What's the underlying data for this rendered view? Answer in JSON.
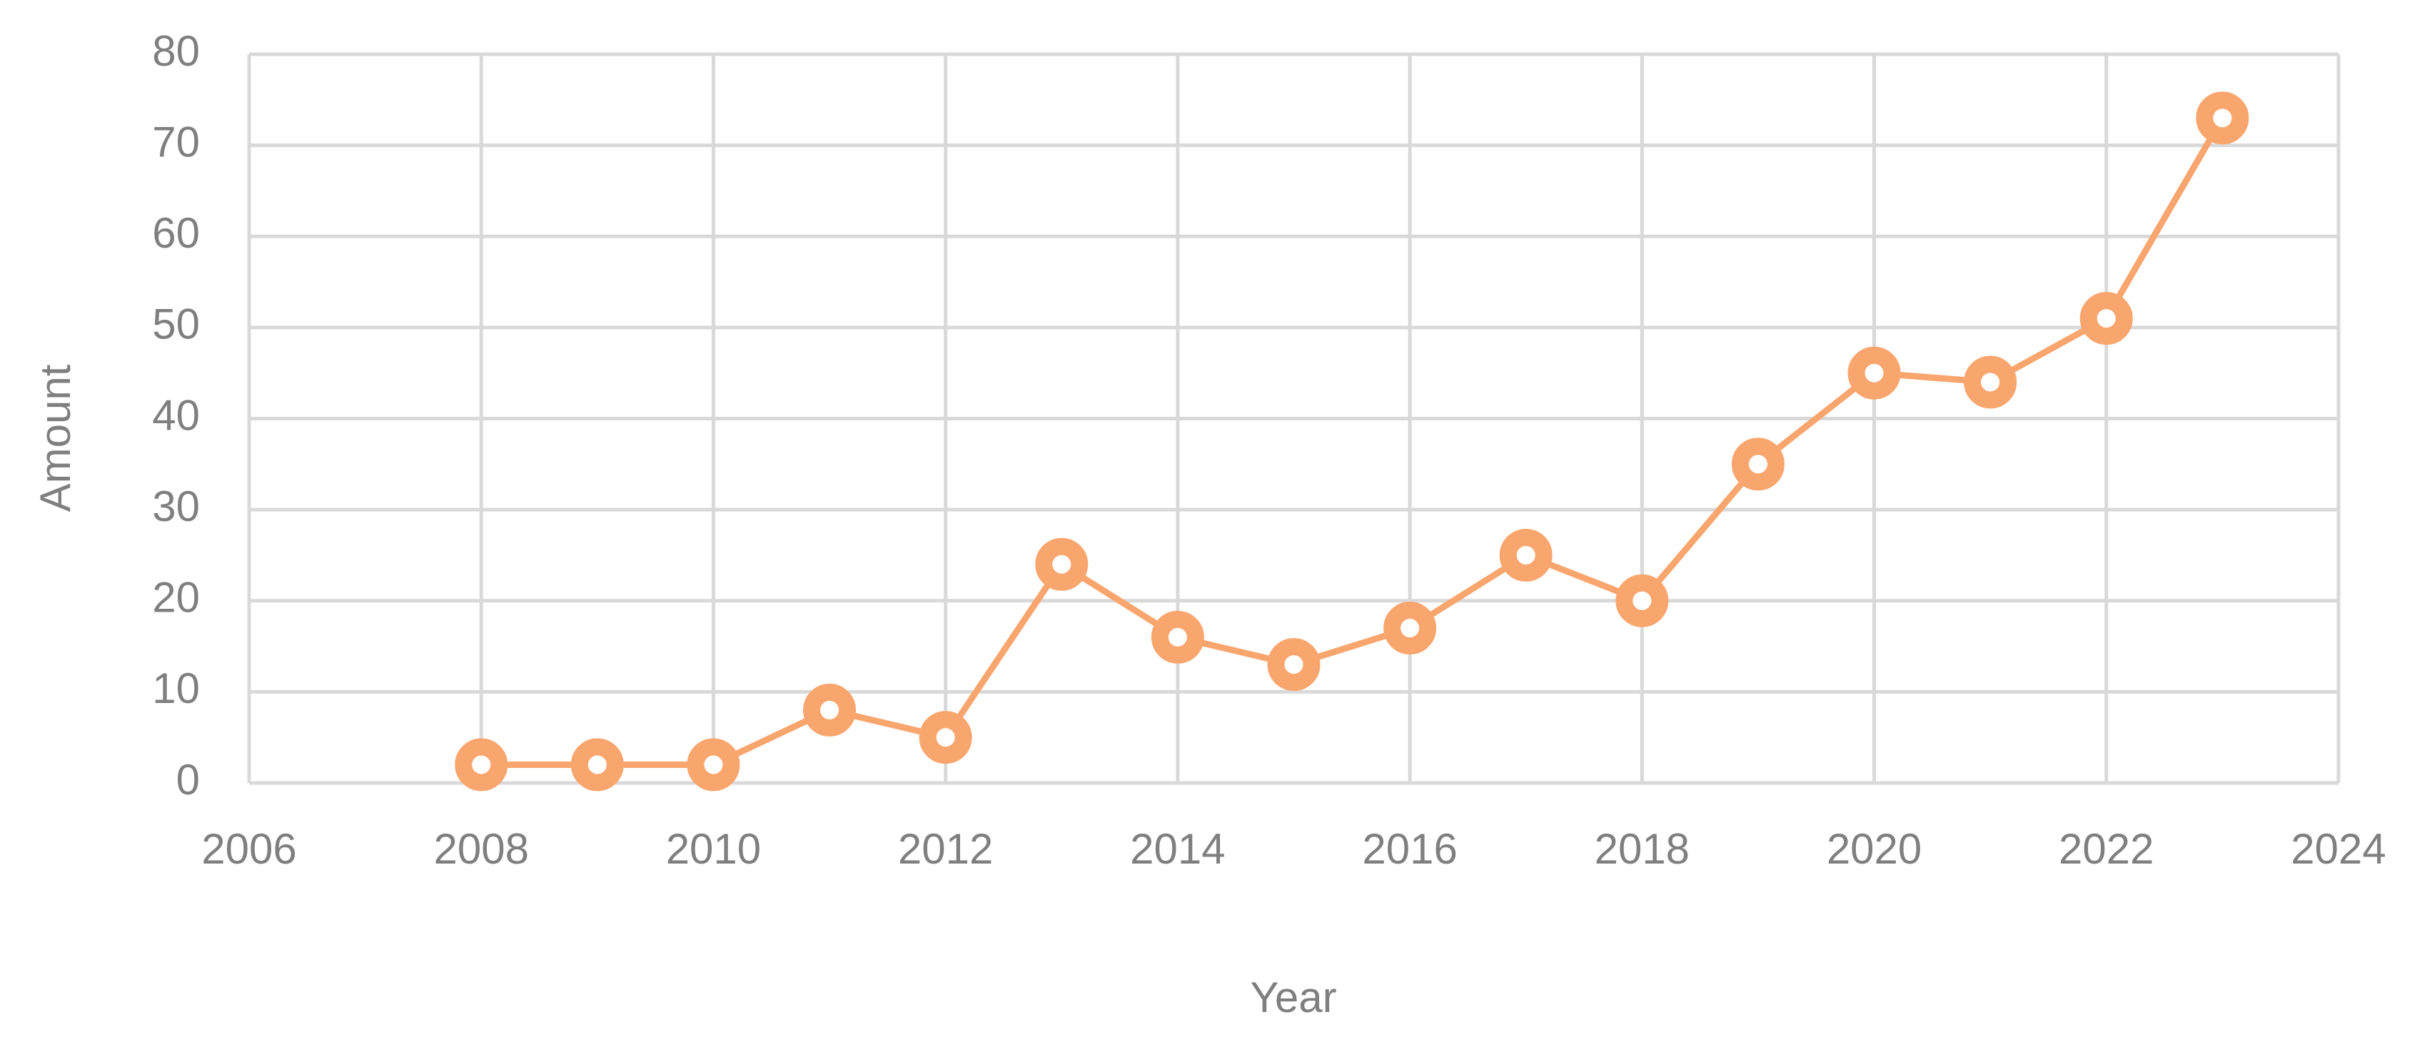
{
  "chart_data": {
    "type": "line",
    "x_label": "Year",
    "y_label": "Amount",
    "x": [
      2008,
      2009,
      2010,
      2011,
      2012,
      2013,
      2014,
      2015,
      2016,
      2017,
      2018,
      2019,
      2020,
      2021,
      2022,
      2023
    ],
    "series": [
      {
        "name": "Amount",
        "color": "#f9a66e",
        "values": [
          2,
          2,
          2,
          8,
          5,
          24,
          16,
          13,
          17,
          25,
          20,
          35,
          45,
          44,
          51,
          73
        ]
      }
    ],
    "xlim": [
      2006,
      2024
    ],
    "xticks": [
      2006,
      2008,
      2010,
      2012,
      2014,
      2016,
      2018,
      2020,
      2022,
      2024
    ],
    "ylim": [
      0,
      80
    ],
    "yticks": [
      0,
      10,
      20,
      30,
      40,
      50,
      60,
      70,
      80
    ],
    "grid": true
  }
}
